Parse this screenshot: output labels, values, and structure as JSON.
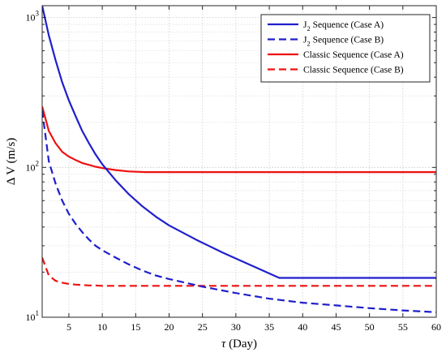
{
  "chart_data": {
    "type": "line",
    "xlabel": {
      "symbol": "τ",
      "text": " (Day)"
    },
    "ylabel": "Δ V (m/s)",
    "xlim": [
      1,
      60
    ],
    "ylim": [
      10,
      1200
    ],
    "yscale": "log",
    "grid": true,
    "legend_position": "top-right",
    "xticks": [
      5,
      10,
      15,
      20,
      25,
      30,
      35,
      40,
      45,
      50,
      55,
      60
    ],
    "yticks": [
      {
        "value": 10,
        "base": "10",
        "exp": "1"
      },
      {
        "value": 100,
        "base": "10",
        "exp": "2"
      },
      {
        "value": 1000,
        "base": "10",
        "exp": "3"
      }
    ],
    "series": [
      {
        "name": "J2 Sequence (Case A)",
        "legend": {
          "pre": "J",
          "sub": "2",
          "post": " Sequence (Case A)"
        },
        "color": "#1f1fcc",
        "dash": "solid",
        "x": [
          1,
          2,
          3,
          4,
          5,
          6,
          7,
          8,
          9,
          10,
          12,
          14,
          16,
          18,
          20,
          24,
          28,
          32,
          36.5,
          40,
          45,
          50,
          55,
          60
        ],
        "y": [
          1200,
          760,
          520,
          370,
          280,
          220,
          175,
          145,
          122,
          105,
          82,
          66,
          55,
          47,
          41,
          33,
          27,
          22.5,
          18.3,
          18.3,
          18.3,
          18.3,
          18.3,
          18.3
        ]
      },
      {
        "name": "J2 Sequence (Case B)",
        "legend": {
          "pre": "J",
          "sub": "2",
          "post": " Sequence (Case B)"
        },
        "color": "#1f1fcc",
        "dash": "dashed",
        "x": [
          1,
          2,
          3,
          4,
          5,
          6,
          7,
          8,
          9,
          10,
          12,
          14,
          16,
          18,
          20,
          25,
          30,
          35,
          40,
          45,
          50,
          55,
          60
        ],
        "y": [
          240,
          110,
          78,
          60,
          49,
          42,
          37,
          33,
          30,
          28,
          25,
          22.5,
          20.5,
          19,
          18,
          16,
          14.5,
          13.3,
          12.5,
          12,
          11.5,
          11.1,
          10.8
        ]
      },
      {
        "name": "Classic Sequence (Case A)",
        "legend": {
          "pre": "Classic Sequence (Case A)",
          "sub": "",
          "post": ""
        },
        "color": "#ee1111",
        "dash": "solid",
        "x": [
          1,
          2,
          3,
          4,
          5,
          6,
          7,
          8,
          9,
          10,
          12,
          14,
          16.5,
          20,
          25,
          30,
          35,
          40,
          45,
          50,
          55,
          60
        ],
        "y": [
          255,
          175,
          145,
          127,
          118,
          112,
          107,
          104,
          101,
          99,
          96,
          94,
          93,
          93,
          93,
          93,
          93,
          93,
          93,
          93,
          93,
          93
        ]
      },
      {
        "name": "Classic Sequence (Case B)",
        "legend": {
          "pre": "Classic Sequence (Case B)",
          "sub": "",
          "post": ""
        },
        "color": "#ee1111",
        "dash": "dashed",
        "x": [
          1,
          2,
          3,
          4,
          5,
          6,
          7,
          8,
          9,
          10,
          12,
          15,
          20,
          25,
          30,
          35,
          40,
          45,
          50,
          55,
          60
        ],
        "y": [
          25,
          19,
          17.5,
          17,
          16.7,
          16.5,
          16.4,
          16.3,
          16.3,
          16.2,
          16.2,
          16.2,
          16.2,
          16.2,
          16.2,
          16.2,
          16.2,
          16.2,
          16.2,
          16.2,
          16.2
        ]
      }
    ]
  }
}
